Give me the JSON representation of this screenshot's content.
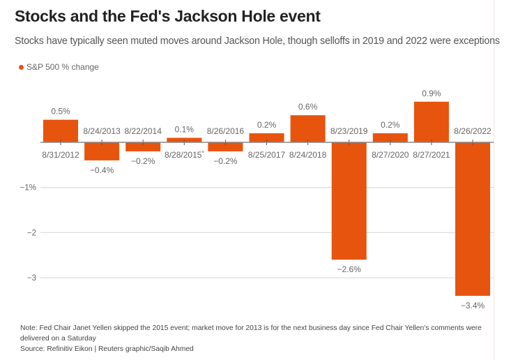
{
  "header": {
    "title": "Stocks and the Fed's Jackson Hole event",
    "subtitle": "Stocks have typically seen muted moves around Jackson Hole, though selloffs in 2019 and 2022 were exceptions"
  },
  "colors": {
    "bar": "#e6540e",
    "grid": "#dddddd",
    "axis": "#888888",
    "label": "#666666"
  },
  "chart_data": {
    "type": "bar",
    "title": "Stocks and the Fed's Jackson Hole event",
    "subtitle": "Stocks have typically seen muted moves around Jackson Hole, though selloffs in 2019 and 2022 were exceptions",
    "xlabel": "",
    "ylabel": "",
    "legend": {
      "position": "top-left",
      "entries": [
        "S&P 500 % change"
      ]
    },
    "grid": true,
    "ylim": [
      -3.6,
      1.0
    ],
    "yticks": [
      {
        "value": -1,
        "label": "-1%"
      },
      {
        "value": -2,
        "label": "-2"
      },
      {
        "value": -3,
        "label": "-3"
      }
    ],
    "categories": [
      "8/31/2012",
      "8/24/2013",
      "8/22/2014",
      "8/28/2015*",
      "8/26/2016",
      "8/25/2017",
      "8/24/2018",
      "8/23/2019",
      "8/27/2020",
      "8/27/2021",
      "8/26/2022"
    ],
    "series": [
      {
        "name": "S&P 500 % change",
        "values": [
          0.5,
          -0.4,
          -0.2,
          0.1,
          -0.2,
          0.2,
          0.6,
          -2.6,
          0.2,
          0.9,
          -3.4
        ],
        "data_labels": [
          "0.5%",
          "-0.4%",
          "-0.2%",
          "0.1%",
          "-0.2%",
          "0.2%",
          "0.6%",
          "-2.6%",
          "0.2%",
          "0.9%",
          "-3.4%"
        ]
      }
    ]
  },
  "footer": {
    "note_line1": "Note: Fed Chair Janet Yellen skipped the 2015 event; market move for 2013 is for the next business day since Fed Chair Yellen's comments were",
    "note_line2": "delivered on a Saturday",
    "source": "Source: Refinitiv Eikon | Reuters graphic/Saqib Ahmed"
  }
}
